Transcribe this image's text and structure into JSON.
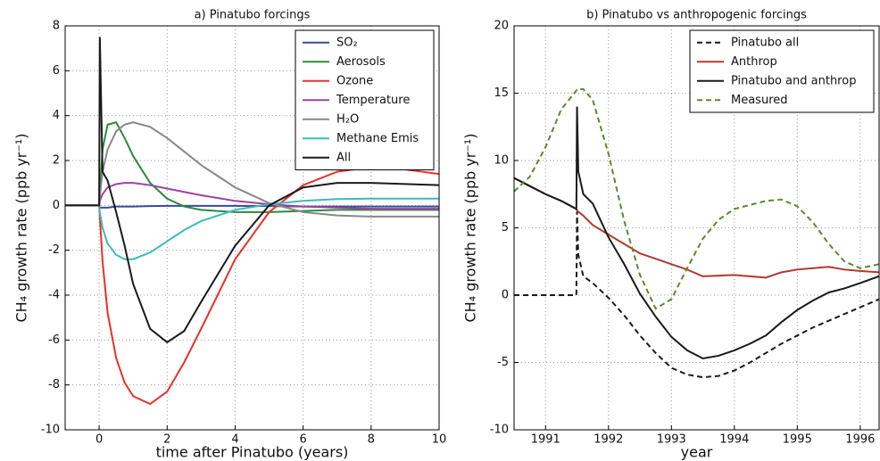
{
  "chart_data": [
    {
      "type": "line",
      "title": "a) Pinatubo forcings",
      "xlabel": "time after Pinatubo (years)",
      "ylabel": "CH₄ growth rate (ppb yr⁻¹)",
      "xlim": [
        -1,
        10
      ],
      "ylim": [
        -10,
        8
      ],
      "xticks": [
        0,
        2,
        4,
        6,
        8,
        10
      ],
      "yticks": [
        -10,
        -8,
        -6,
        -4,
        -2,
        0,
        2,
        4,
        6,
        8
      ],
      "grid": true,
      "legend": "upper right",
      "x": [
        -1,
        0,
        0.02,
        0.1,
        0.25,
        0.5,
        0.75,
        1,
        1.5,
        2,
        2.5,
        3,
        4,
        5,
        6,
        7,
        8,
        9,
        10
      ],
      "series": [
        {
          "name": "SO₂",
          "color": "#3a4a9a",
          "values": [
            0,
            0,
            -0.1,
            -0.1,
            -0.1,
            -0.05,
            -0.05,
            -0.05,
            -0.03,
            -0.02,
            -0.02,
            -0.02,
            -0.02,
            -0.03,
            -0.05,
            -0.05,
            -0.05,
            -0.05,
            -0.05
          ]
        },
        {
          "name": "Aerosols",
          "color": "#2e8b3a",
          "values": [
            0,
            0,
            0.5,
            2.5,
            3.6,
            3.7,
            3.0,
            2.2,
            1.0,
            0.3,
            -0.05,
            -0.2,
            -0.3,
            -0.3,
            -0.25,
            -0.2,
            -0.2,
            -0.2,
            -0.2
          ]
        },
        {
          "name": "Ozone",
          "color": "#e8312a",
          "values": [
            0,
            0,
            -0.5,
            -2.5,
            -4.8,
            -6.8,
            -7.9,
            -8.5,
            -8.85,
            -8.3,
            -7,
            -5.5,
            -2.4,
            -0.3,
            0.9,
            1.5,
            1.7,
            1.6,
            1.4
          ]
        },
        {
          "name": "Temperature",
          "color": "#a040a8",
          "values": [
            0,
            0,
            0.2,
            0.5,
            0.8,
            0.95,
            1.0,
            1.0,
            0.9,
            0.75,
            0.6,
            0.45,
            0.2,
            0.05,
            -0.05,
            -0.1,
            -0.15,
            -0.15,
            -0.15
          ]
        },
        {
          "name": "H₂O",
          "color": "#888888",
          "values": [
            0,
            0,
            0.4,
            1.5,
            2.5,
            3.3,
            3.6,
            3.7,
            3.5,
            3.0,
            2.4,
            1.8,
            0.8,
            0.1,
            -0.3,
            -0.45,
            -0.5,
            -0.5,
            -0.5
          ]
        },
        {
          "name": "Methane Emis",
          "color": "#3bbcb8",
          "values": [
            0,
            0,
            -0.3,
            -1.0,
            -1.7,
            -2.2,
            -2.4,
            -2.4,
            -2.1,
            -1.6,
            -1.1,
            -0.7,
            -0.2,
            0.05,
            0.2,
            0.28,
            0.3,
            0.3,
            0.3
          ]
        },
        {
          "name": "All",
          "color": "#1a1a1a",
          "values": [
            0,
            0,
            7.5,
            1.5,
            1.1,
            -0.3,
            -1.8,
            -3.5,
            -5.5,
            -6.1,
            -5.6,
            -4.3,
            -1.8,
            0,
            0.8,
            1.0,
            1.0,
            0.95,
            0.9
          ]
        }
      ]
    },
    {
      "type": "line",
      "title": "b) Pinatubo vs anthropogenic forcings",
      "xlabel": "year",
      "ylabel": "CH₄ growth rate (ppb yr⁻¹)",
      "xlim": [
        1990.5,
        1996.3
      ],
      "ylim": [
        -10,
        20
      ],
      "xticks": [
        1991,
        1992,
        1993,
        1994,
        1995,
        1996
      ],
      "yticks": [
        -10,
        -5,
        0,
        5,
        10,
        15,
        20
      ],
      "grid": true,
      "legend": "upper right",
      "x": [
        1990.5,
        1990.75,
        1991,
        1991.25,
        1991.49,
        1991.5,
        1991.52,
        1991.6,
        1991.75,
        1992,
        1992.25,
        1992.5,
        1992.75,
        1993,
        1993.25,
        1993.5,
        1993.75,
        1994,
        1994.25,
        1994.5,
        1994.75,
        1995,
        1995.25,
        1995.5,
        1995.75,
        1996,
        1996.3
      ],
      "series": [
        {
          "name": "Pinatubo all",
          "color": "#1a1a1a",
          "style": "dashed",
          "values": [
            0,
            0,
            0,
            0,
            0,
            6.2,
            3,
            1.4,
            0.9,
            -0.2,
            -1.5,
            -3,
            -4.3,
            -5.4,
            -5.9,
            -6.1,
            -6.0,
            -5.6,
            -5.0,
            -4.3,
            -3.6,
            -3.0,
            -2.4,
            -1.9,
            -1.4,
            -0.9,
            -0.3
          ]
        },
        {
          "name": "Anthrop",
          "color": "#b03a30",
          "style": "solid",
          "values": [
            8.7,
            8.1,
            7.5,
            7,
            6.4,
            6.3,
            6.2,
            5.9,
            5.2,
            4.5,
            3.8,
            3.1,
            2.7,
            2.3,
            1.9,
            1.4,
            1.45,
            1.5,
            1.4,
            1.3,
            1.7,
            1.9,
            2.0,
            2.1,
            1.9,
            1.8,
            1.7
          ]
        },
        {
          "name": "Pinatubo and anthrop",
          "color": "#1a1a1a",
          "style": "solid",
          "values": [
            8.7,
            8.1,
            7.5,
            7,
            6.4,
            14,
            9.2,
            7.5,
            6.8,
            4.3,
            2.3,
            0.1,
            -1.6,
            -3.1,
            -4.1,
            -4.7,
            -4.5,
            -4.1,
            -3.6,
            -3.0,
            -2.0,
            -1.1,
            -0.4,
            0.2,
            0.5,
            0.9,
            1.4
          ]
        },
        {
          "name": "Measured",
          "color": "#5a8a2a",
          "style": "dashed",
          "values": [
            7.7,
            8.8,
            11,
            13.8,
            15.2,
            15.3,
            15.3,
            15.3,
            14.5,
            10.5,
            5.5,
            1.5,
            -1.0,
            -0.3,
            2.0,
            4.2,
            5.6,
            6.4,
            6.7,
            7.0,
            7.1,
            6.6,
            5.4,
            3.8,
            2.5,
            2.0,
            2.3
          ]
        }
      ]
    }
  ]
}
